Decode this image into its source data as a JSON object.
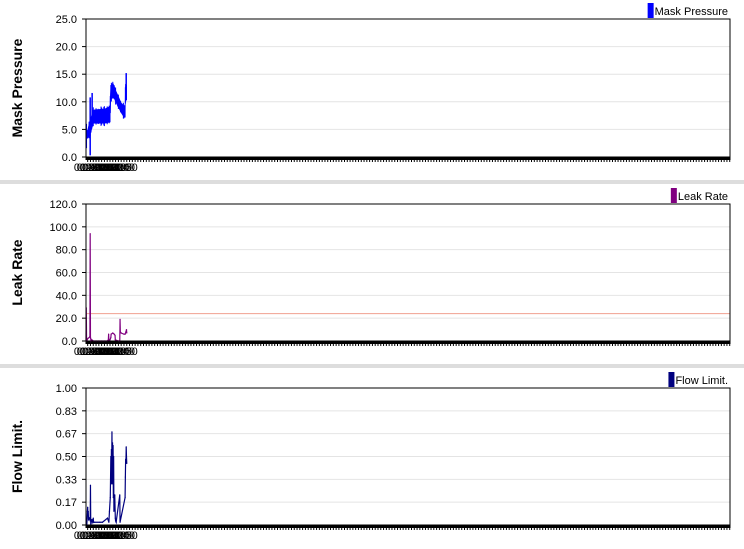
{
  "chart_data": [
    {
      "type": "line",
      "ylabel": "Mask Pressure",
      "legend": "Mask Pressure",
      "legend_position": "top-right",
      "color": "#0000ff",
      "ylim": [
        0,
        25
      ],
      "yticks": [
        "0.0",
        "5.0",
        "10.0",
        "15.0",
        "20.0",
        "25.0"
      ],
      "grid": true,
      "xlim_minutes": [
        94,
        2401
      ],
      "xticks": [
        "01:40",
        "01:50",
        "02:00",
        "02:10",
        "02:20",
        "02:30",
        "02:40",
        "02:50",
        "03:00",
        "03:10",
        "03:20",
        "03:30",
        "03:40",
        "03:50"
      ],
      "series": [
        {
          "name": "Mask Pressure",
          "x": [
            "01:34",
            "01:40",
            "01:45",
            "01:49",
            "01:52",
            "01:55",
            "01:58",
            "02:00",
            "02:10",
            "02:20",
            "02:30",
            "02:40",
            "02:50",
            "02:57",
            "03:00",
            "03:01",
            "03:03",
            "03:05",
            "03:10",
            "03:15",
            "03:20",
            "03:30",
            "03:40",
            "03:50",
            "03:54",
            "03:55",
            "03:56",
            "04:00"
          ],
          "low": [
            3.3,
            3.4,
            3.8,
            4.2,
            4.5,
            5.2,
            5.9,
            6.1,
            6.1,
            6.1,
            6.1,
            6.1,
            6.2,
            6.3,
            6.3,
            8.0,
            10.3,
            10.5,
            10.8,
            10.6,
            10.0,
            9.0,
            8.0,
            7.2,
            7.2,
            9.8,
            10.3,
            10.3
          ],
          "high": [
            4.5,
            4.9,
            6.0,
            6.9,
            7.2,
            7.6,
            8.2,
            8.5,
            8.6,
            8.6,
            8.7,
            8.7,
            8.9,
            9.1,
            9.3,
            11.0,
            12.8,
            13.0,
            13.4,
            12.9,
            12.1,
            11.0,
            9.8,
            9.3,
            9.3,
            12.5,
            13.0,
            13.0
          ],
          "spikes": [
            [
              "01:35",
              1.6,
              6.0
            ],
            [
              "01:49",
              0.3,
              10.8
            ],
            [
              "01:56",
              5.5,
              11.6
            ],
            [
              "03:58",
              10.5,
              15.2
            ]
          ]
        }
      ]
    },
    {
      "type": "line",
      "ylabel": "Leak Rate",
      "legend": "Leak Rate",
      "legend_position": "top-right",
      "color": "#800080",
      "threshold": 24,
      "threshold_color": "#f0a090",
      "ylim": [
        0,
        120
      ],
      "yticks": [
        "0.0",
        "20.0",
        "40.0",
        "60.0",
        "80.0",
        "100.0",
        "120.0"
      ],
      "grid": true,
      "xlim_minutes": [
        94,
        2401
      ],
      "xticks": [
        "01:40",
        "01:50",
        "02:00",
        "02:10",
        "02:20",
        "02:30",
        "02:40",
        "02:50",
        "03:00",
        "03:10",
        "03:20",
        "03:30",
        "03:40",
        "03:50"
      ],
      "series": [
        {
          "name": "Leak Rate",
          "x": [
            "01:34",
            "01:35",
            "01:36",
            "01:37",
            "01:40",
            "01:45",
            "01:48",
            "01:49",
            "01:50",
            "01:51",
            "01:52",
            "01:55",
            "02:00",
            "02:10",
            "02:20",
            "02:30",
            "02:40",
            "02:50",
            "02:54",
            "02:55",
            "02:56",
            "03:00",
            "03:03",
            "03:04",
            "03:10",
            "03:15",
            "03:18",
            "03:19",
            "03:30",
            "03:35",
            "03:36",
            "03:37",
            "03:40",
            "03:50",
            "03:54",
            "03:57",
            "03:59",
            "04:00"
          ],
          "values": [
            0,
            29,
            3,
            0,
            2,
            3,
            4,
            94,
            3,
            2,
            0,
            1,
            0,
            0,
            0,
            0,
            0,
            0,
            1,
            6,
            1,
            1,
            3,
            6,
            7,
            6,
            5,
            1,
            0,
            0,
            19,
            8,
            7,
            6,
            6,
            8,
            10,
            7
          ]
        }
      ]
    },
    {
      "type": "line",
      "ylabel": "Flow Limit.",
      "legend": "Flow Limit.",
      "legend_position": "top-right",
      "color": "#00007f",
      "ylim": [
        0,
        1
      ],
      "yticks": [
        "0.00",
        "0.17",
        "0.33",
        "0.50",
        "0.67",
        "0.83",
        "1.00"
      ],
      "grid": true,
      "xlim_minutes": [
        94,
        2401
      ],
      "xticks": [
        "01:40",
        "01:50",
        "02:00",
        "02:10",
        "02:20",
        "02:30",
        "02:40",
        "02:50",
        "03:00",
        "03:10",
        "03:20",
        "03:30",
        "03:40",
        "03:50"
      ],
      "series": [
        {
          "name": "Flow Limit.",
          "x": [
            "01:37",
            "01:38",
            "01:39",
            "01:40",
            "01:41",
            "01:42",
            "01:43",
            "01:46",
            "01:49",
            "01:50",
            "01:51",
            "01:55",
            "01:56",
            "01:58",
            "02:00",
            "02:01",
            "02:05",
            "02:24",
            "02:33",
            "02:51",
            "02:56",
            "02:58",
            "03:01",
            "03:03",
            "03:04",
            "03:05",
            "03:06",
            "03:07",
            "03:08",
            "03:09",
            "03:10",
            "03:11",
            "03:12",
            "03:13",
            "03:14",
            "03:17",
            "03:19",
            "03:20",
            "03:22",
            "03:35",
            "03:36",
            "03:54",
            "03:55",
            "03:56",
            "03:57",
            "03:58",
            "03:59",
            "04:00"
          ],
          "values": [
            0,
            0.05,
            0.1,
            0.13,
            0.07,
            0.1,
            0.04,
            0.05,
            0.03,
            0.29,
            0,
            0.04,
            0.03,
            0.02,
            0.05,
            0.02,
            0.02,
            0.02,
            0.02,
            0.05,
            0.02,
            0.1,
            0.2,
            0.5,
            0.3,
            0.55,
            0.4,
            0.68,
            0.3,
            0.6,
            0.45,
            0.58,
            0.2,
            0.5,
            0.1,
            0.22,
            0.05,
            0.03,
            0.02,
            0.22,
            0.02,
            0.2,
            0.35,
            0.48,
            0.45,
            0.57,
            0.5,
            0.45
          ]
        }
      ]
    }
  ]
}
